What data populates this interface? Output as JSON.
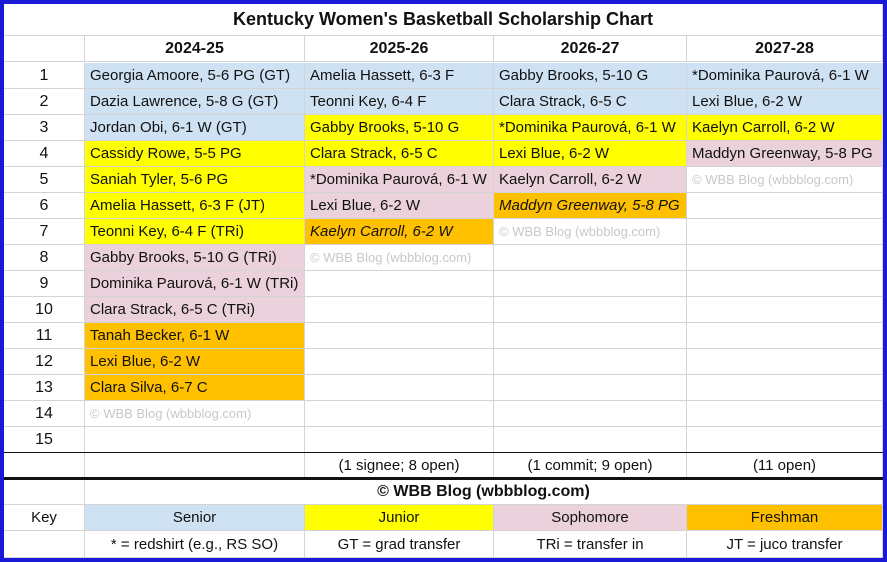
{
  "title": "Kentucky Women's Basketball Scholarship Chart",
  "columns": [
    "2024-25",
    "2025-26",
    "2026-27",
    "2027-28"
  ],
  "row_numbers": [
    "1",
    "2",
    "3",
    "4",
    "5",
    "6",
    "7",
    "8",
    "9",
    "10",
    "11",
    "12",
    "13",
    "14",
    "15"
  ],
  "watermark": "© WBB Blog (wbbblog.com)",
  "grid": [
    [
      {
        "text": "Georgia Amoore, 5-6 PG (GT)",
        "cls": "senior"
      },
      {
        "text": "Amelia Hassett, 6-3 F",
        "cls": "senior"
      },
      {
        "text": "Gabby Brooks, 5-10 G",
        "cls": "senior"
      },
      {
        "text": "*Dominika Paurová, 6-1 W",
        "cls": "senior"
      }
    ],
    [
      {
        "text": "Dazia Lawrence, 5-8 G (GT)",
        "cls": "senior"
      },
      {
        "text": "Teonni Key, 6-4 F",
        "cls": "senior"
      },
      {
        "text": "Clara Strack, 6-5 C",
        "cls": "senior"
      },
      {
        "text": "Lexi Blue, 6-2 W",
        "cls": "senior"
      }
    ],
    [
      {
        "text": "Jordan Obi, 6-1 W (GT)",
        "cls": "senior"
      },
      {
        "text": "Gabby Brooks, 5-10 G",
        "cls": "junior"
      },
      {
        "text": "*Dominika Paurová, 6-1 W",
        "cls": "junior"
      },
      {
        "text": "Kaelyn Carroll, 6-2 W",
        "cls": "junior"
      }
    ],
    [
      {
        "text": "Cassidy Rowe, 5-5 PG",
        "cls": "junior"
      },
      {
        "text": "Clara Strack, 6-5 C",
        "cls": "junior"
      },
      {
        "text": "Lexi Blue, 6-2 W",
        "cls": "junior"
      },
      {
        "text": "Maddyn Greenway, 5-8 PG",
        "cls": "soph"
      }
    ],
    [
      {
        "text": "Saniah Tyler, 5-6 PG",
        "cls": "junior"
      },
      {
        "text": "*Dominika Paurová, 6-1 W",
        "cls": "soph"
      },
      {
        "text": "Kaelyn Carroll, 6-2 W",
        "cls": "soph"
      },
      {
        "text": "© WBB Blog (wbbblog.com)",
        "cls": "wm"
      }
    ],
    [
      {
        "text": "Amelia Hassett, 6-3 F (JT)",
        "cls": "junior"
      },
      {
        "text": "Lexi Blue, 6-2 W",
        "cls": "soph"
      },
      {
        "text": "Maddyn Greenway, 5-8 PG",
        "cls": "fresh it"
      },
      {
        "text": "",
        "cls": ""
      }
    ],
    [
      {
        "text": "Teonni Key, 6-4 F (TRi)",
        "cls": "junior"
      },
      {
        "text": "Kaelyn Carroll, 6-2 W",
        "cls": "fresh it"
      },
      {
        "text": "© WBB Blog (wbbblog.com)",
        "cls": "wm"
      },
      {
        "text": "",
        "cls": ""
      }
    ],
    [
      {
        "text": "Gabby Brooks, 5-10 G (TRi)",
        "cls": "soph"
      },
      {
        "text": "© WBB Blog (wbbblog.com)",
        "cls": "wm"
      },
      {
        "text": "",
        "cls": ""
      },
      {
        "text": "",
        "cls": ""
      }
    ],
    [
      {
        "text": "Dominika Paurová, 6-1 W (TRi)",
        "cls": "soph"
      },
      {
        "text": "",
        "cls": ""
      },
      {
        "text": "",
        "cls": ""
      },
      {
        "text": "",
        "cls": ""
      }
    ],
    [
      {
        "text": "Clara Strack, 6-5 C (TRi)",
        "cls": "soph"
      },
      {
        "text": "",
        "cls": ""
      },
      {
        "text": "",
        "cls": ""
      },
      {
        "text": "",
        "cls": ""
      }
    ],
    [
      {
        "text": "Tanah Becker, 6-1 W",
        "cls": "fresh"
      },
      {
        "text": "",
        "cls": ""
      },
      {
        "text": "",
        "cls": ""
      },
      {
        "text": "",
        "cls": ""
      }
    ],
    [
      {
        "text": "Lexi Blue, 6-2 W",
        "cls": "fresh"
      },
      {
        "text": "",
        "cls": ""
      },
      {
        "text": "",
        "cls": ""
      },
      {
        "text": "",
        "cls": ""
      }
    ],
    [
      {
        "text": "Clara Silva, 6-7 C",
        "cls": "fresh"
      },
      {
        "text": "",
        "cls": ""
      },
      {
        "text": "",
        "cls": ""
      },
      {
        "text": "",
        "cls": ""
      }
    ],
    [
      {
        "text": "© WBB Blog (wbbblog.com)",
        "cls": "wm"
      },
      {
        "text": "",
        "cls": ""
      },
      {
        "text": "",
        "cls": ""
      },
      {
        "text": "",
        "cls": ""
      }
    ],
    [
      {
        "text": "",
        "cls": ""
      },
      {
        "text": "",
        "cls": ""
      },
      {
        "text": "",
        "cls": ""
      },
      {
        "text": "",
        "cls": ""
      }
    ]
  ],
  "summary": [
    "",
    "(1 signee; 8 open)",
    "(1 commit; 9 open)",
    "(11 open)"
  ],
  "footer_credit": "© WBB Blog (wbbblog.com)",
  "key": {
    "label": "Key",
    "items": [
      {
        "text": "Senior",
        "cls": "senior"
      },
      {
        "text": "Junior",
        "cls": "junior"
      },
      {
        "text": "Sophomore",
        "cls": "soph"
      },
      {
        "text": "Freshman",
        "cls": "fresh"
      }
    ],
    "notes": [
      "* = redshirt (e.g., RS SO)",
      "GT = grad transfer",
      "TRi = transfer in",
      "JT = juco transfer"
    ]
  },
  "colors": {
    "senior": "#cfe2f3",
    "junior": "#ffff00",
    "sophomore": "#ead1dc",
    "freshman": "#ffc000",
    "border": "#1a1ad6"
  }
}
